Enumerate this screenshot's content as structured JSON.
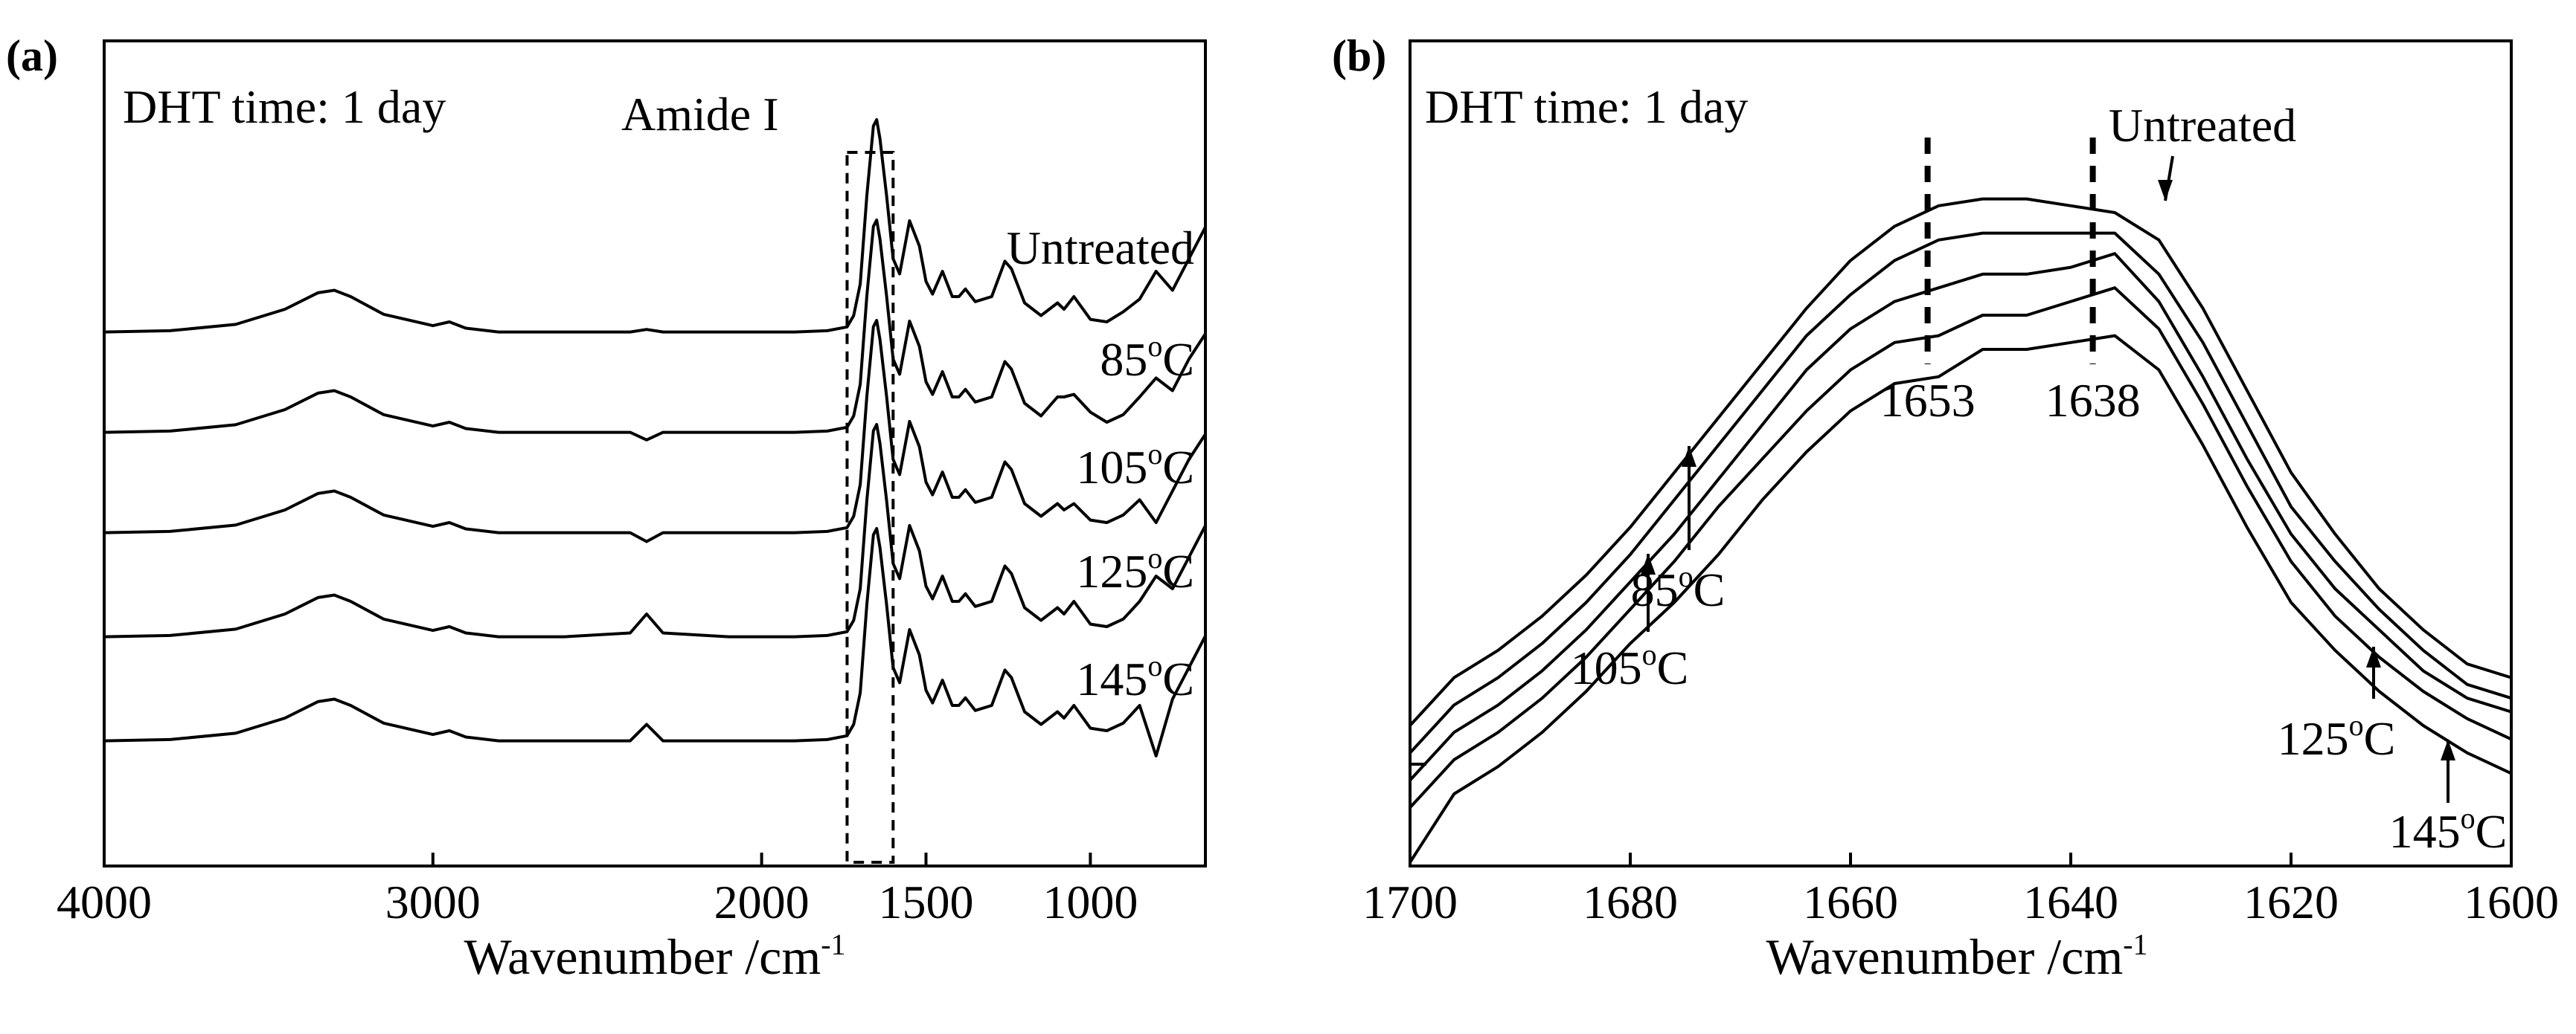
{
  "chart_data": [
    {
      "type": "line",
      "panel_label": "(a)",
      "xlabel": "Wavenumber /cm",
      "xlabel_sup": "-1",
      "x_reversed": true,
      "xlim": [
        4000,
        650
      ],
      "x_ticks": [
        {
          "value": 4000,
          "label": "4000"
        },
        {
          "value": 3000,
          "label": "3000"
        },
        {
          "value": 2000,
          "label": "2000"
        },
        {
          "value": 1500,
          "label": "1500"
        },
        {
          "value": 1000,
          "label": "1000"
        }
      ],
      "y_ticks_shown": false,
      "stack_offset": 0.72,
      "annotations": {
        "condition": "DHT time: 1 day",
        "region_label": "Amide I",
        "region_x": [
          1740,
          1600
        ]
      },
      "series": [
        {
          "name": "Untreated",
          "name_text": "Untreated",
          "name_sup": "",
          "name_suffix": "",
          "x": [
            4000,
            3800,
            3600,
            3450,
            3350,
            3300,
            3250,
            3150,
            3000,
            2950,
            2900,
            2800,
            2600,
            2400,
            2350,
            2300,
            2100,
            1900,
            1800,
            1740,
            1720,
            1700,
            1680,
            1660,
            1650,
            1640,
            1620,
            1600,
            1580,
            1550,
            1520,
            1500,
            1480,
            1450,
            1420,
            1400,
            1380,
            1350,
            1300,
            1260,
            1240,
            1200,
            1150,
            1100,
            1080,
            1050,
            1000,
            950,
            900,
            850,
            800,
            750,
            700,
            650
          ],
          "y": [
            0.02,
            0.03,
            0.08,
            0.2,
            0.33,
            0.35,
            0.3,
            0.16,
            0.07,
            0.1,
            0.05,
            0.02,
            0.02,
            0.02,
            0.04,
            0.02,
            0.02,
            0.02,
            0.03,
            0.06,
            0.15,
            0.4,
            1.1,
            1.65,
            1.7,
            1.55,
            1.1,
            0.6,
            0.48,
            0.9,
            0.7,
            0.42,
            0.32,
            0.5,
            0.3,
            0.3,
            0.36,
            0.26,
            0.3,
            0.58,
            0.52,
            0.25,
            0.15,
            0.25,
            0.2,
            0.3,
            0.12,
            0.1,
            0.18,
            0.28,
            0.5,
            0.35,
            0.6,
            0.85
          ]
        },
        {
          "name": "85°C",
          "name_text": "85",
          "name_sup": "o",
          "name_suffix": "C",
          "x": [
            4000,
            3800,
            3600,
            3450,
            3350,
            3300,
            3250,
            3150,
            3000,
            2950,
            2900,
            2800,
            2600,
            2400,
            2350,
            2300,
            2100,
            1900,
            1800,
            1740,
            1720,
            1700,
            1680,
            1660,
            1650,
            1640,
            1620,
            1600,
            1580,
            1550,
            1520,
            1500,
            1480,
            1450,
            1420,
            1400,
            1380,
            1350,
            1300,
            1260,
            1240,
            1200,
            1150,
            1100,
            1080,
            1050,
            1000,
            950,
            900,
            850,
            800,
            750,
            700,
            650
          ],
          "y": [
            0.02,
            0.03,
            0.08,
            0.2,
            0.33,
            0.35,
            0.3,
            0.16,
            0.07,
            0.1,
            0.05,
            0.02,
            0.02,
            0.02,
            -0.04,
            0.02,
            0.02,
            0.02,
            0.03,
            0.06,
            0.15,
            0.4,
            1.1,
            1.65,
            1.7,
            1.55,
            1.1,
            0.6,
            0.48,
            0.9,
            0.7,
            0.42,
            0.32,
            0.5,
            0.3,
            0.3,
            0.36,
            0.26,
            0.3,
            0.58,
            0.52,
            0.25,
            0.15,
            0.3,
            0.3,
            0.32,
            0.18,
            0.1,
            0.16,
            0.3,
            0.45,
            0.35,
            0.6,
            0.8
          ]
        },
        {
          "name": "105°C",
          "name_text": "105",
          "name_sup": "o",
          "name_suffix": "C",
          "x": [
            4000,
            3800,
            3600,
            3450,
            3350,
            3300,
            3250,
            3150,
            3000,
            2950,
            2900,
            2800,
            2600,
            2400,
            2350,
            2300,
            2100,
            1900,
            1800,
            1740,
            1720,
            1700,
            1680,
            1660,
            1650,
            1640,
            1620,
            1600,
            1580,
            1550,
            1520,
            1500,
            1480,
            1450,
            1420,
            1400,
            1380,
            1350,
            1300,
            1260,
            1240,
            1200,
            1150,
            1100,
            1080,
            1050,
            1000,
            950,
            900,
            850,
            800,
            750,
            700,
            650
          ],
          "y": [
            0.02,
            0.03,
            0.08,
            0.2,
            0.33,
            0.35,
            0.3,
            0.16,
            0.07,
            0.1,
            0.05,
            0.02,
            0.02,
            0.02,
            -0.05,
            0.02,
            0.02,
            0.02,
            0.03,
            0.06,
            0.15,
            0.4,
            1.1,
            1.65,
            1.7,
            1.55,
            1.1,
            0.6,
            0.48,
            0.9,
            0.7,
            0.42,
            0.32,
            0.5,
            0.3,
            0.3,
            0.36,
            0.26,
            0.3,
            0.58,
            0.52,
            0.25,
            0.15,
            0.25,
            0.2,
            0.25,
            0.12,
            0.1,
            0.16,
            0.28,
            0.1,
            0.35,
            0.6,
            0.8
          ]
        },
        {
          "name": "125°C",
          "name_text": "125",
          "name_sup": "o",
          "name_suffix": "C",
          "x": [
            4000,
            3800,
            3600,
            3450,
            3350,
            3300,
            3250,
            3150,
            3000,
            2950,
            2900,
            2800,
            2600,
            2400,
            2350,
            2300,
            2100,
            1900,
            1800,
            1740,
            1720,
            1700,
            1680,
            1660,
            1650,
            1640,
            1620,
            1600,
            1580,
            1550,
            1520,
            1500,
            1480,
            1450,
            1420,
            1400,
            1380,
            1350,
            1300,
            1260,
            1240,
            1200,
            1150,
            1100,
            1080,
            1050,
            1000,
            950,
            900,
            850,
            800,
            750,
            700,
            650
          ],
          "y": [
            0.02,
            0.03,
            0.08,
            0.2,
            0.33,
            0.35,
            0.3,
            0.16,
            0.07,
            0.1,
            0.05,
            0.02,
            0.02,
            0.05,
            0.2,
            0.05,
            0.02,
            0.02,
            0.03,
            0.06,
            0.15,
            0.4,
            1.1,
            1.65,
            1.7,
            1.55,
            1.1,
            0.6,
            0.48,
            0.9,
            0.7,
            0.42,
            0.32,
            0.5,
            0.3,
            0.3,
            0.36,
            0.26,
            0.3,
            0.58,
            0.52,
            0.25,
            0.15,
            0.25,
            0.2,
            0.3,
            0.12,
            0.1,
            0.16,
            0.3,
            0.5,
            0.4,
            0.65,
            0.9
          ]
        },
        {
          "name": "145°C",
          "name_text": "145",
          "name_sup": "o",
          "name_suffix": "C",
          "x": [
            4000,
            3800,
            3600,
            3450,
            3350,
            3300,
            3250,
            3150,
            3000,
            2950,
            2900,
            2800,
            2600,
            2400,
            2350,
            2300,
            2100,
            1900,
            1800,
            1740,
            1720,
            1700,
            1680,
            1660,
            1650,
            1640,
            1620,
            1600,
            1580,
            1550,
            1520,
            1500,
            1480,
            1450,
            1420,
            1400,
            1380,
            1350,
            1300,
            1260,
            1240,
            1200,
            1150,
            1100,
            1080,
            1050,
            1000,
            950,
            900,
            850,
            800,
            750,
            700,
            650
          ],
          "y": [
            0.02,
            0.03,
            0.08,
            0.2,
            0.33,
            0.35,
            0.3,
            0.16,
            0.07,
            0.1,
            0.05,
            0.02,
            0.02,
            0.02,
            0.15,
            0.02,
            0.02,
            0.02,
            0.03,
            0.06,
            0.15,
            0.4,
            1.1,
            1.65,
            1.7,
            1.55,
            1.1,
            0.6,
            0.48,
            0.9,
            0.7,
            0.42,
            0.32,
            0.5,
            0.3,
            0.3,
            0.36,
            0.26,
            0.3,
            0.58,
            0.52,
            0.25,
            0.15,
            0.25,
            0.2,
            0.3,
            0.12,
            0.1,
            0.16,
            0.3,
            -0.1,
            0.35,
            0.6,
            0.85
          ]
        }
      ]
    },
    {
      "type": "line",
      "panel_label": "(b)",
      "xlabel": "Wavenumber /cm",
      "xlabel_sup": "-1",
      "x_reversed": true,
      "xlim": [
        1700,
        1600
      ],
      "x_ticks": [
        {
          "value": 1700,
          "label": "1700"
        },
        {
          "value": 1680,
          "label": "1680"
        },
        {
          "value": 1660,
          "label": "1660"
        },
        {
          "value": 1640,
          "label": "1640"
        },
        {
          "value": 1620,
          "label": "1620"
        },
        {
          "value": 1600,
          "label": "1600"
        }
      ],
      "y_ticks_shown": false,
      "annotations": {
        "condition": "DHT time: 1 day",
        "peak_markers": [
          {
            "value": 1653,
            "label": "1653"
          },
          {
            "value": 1638,
            "label": "1638"
          }
        ]
      },
      "series": [
        {
          "name": "Untreated",
          "name_text": "Untreated",
          "name_sup": "",
          "name_suffix": "",
          "x": [
            1700,
            1696,
            1692,
            1688,
            1684,
            1680,
            1676,
            1672,
            1668,
            1664,
            1660,
            1656,
            1652,
            1648,
            1644,
            1640,
            1636,
            1632,
            1628,
            1624,
            1620,
            1616,
            1612,
            1608,
            1604,
            1600
          ],
          "y": [
            0.2,
            0.27,
            0.31,
            0.36,
            0.42,
            0.49,
            0.57,
            0.65,
            0.73,
            0.81,
            0.88,
            0.93,
            0.96,
            0.97,
            0.97,
            0.96,
            0.95,
            0.91,
            0.81,
            0.69,
            0.57,
            0.48,
            0.4,
            0.34,
            0.29,
            0.27
          ]
        },
        {
          "name": "85°C",
          "name_text": "85",
          "name_sup": "o",
          "name_suffix": "C",
          "x": [
            1700,
            1696,
            1692,
            1688,
            1684,
            1680,
            1676,
            1672,
            1668,
            1664,
            1660,
            1656,
            1652,
            1648,
            1644,
            1640,
            1636,
            1632,
            1628,
            1624,
            1620,
            1616,
            1612,
            1608,
            1604,
            1600
          ],
          "y": [
            0.16,
            0.23,
            0.27,
            0.32,
            0.38,
            0.45,
            0.53,
            0.61,
            0.69,
            0.77,
            0.83,
            0.88,
            0.91,
            0.92,
            0.92,
            0.92,
            0.92,
            0.86,
            0.76,
            0.64,
            0.52,
            0.44,
            0.37,
            0.31,
            0.26,
            0.24
          ]
        },
        {
          "name": "105°C",
          "name_text": "105",
          "name_sup": "o",
          "name_suffix": "C",
          "x": [
            1700,
            1696,
            1692,
            1688,
            1684,
            1680,
            1676,
            1672,
            1668,
            1664,
            1660,
            1656,
            1652,
            1648,
            1644,
            1640,
            1636,
            1632,
            1628,
            1624,
            1620,
            1616,
            1612,
            1608,
            1604,
            1600
          ],
          "y": [
            0.12,
            0.19,
            0.23,
            0.28,
            0.34,
            0.41,
            0.48,
            0.56,
            0.64,
            0.72,
            0.78,
            0.82,
            0.84,
            0.86,
            0.86,
            0.87,
            0.89,
            0.82,
            0.71,
            0.59,
            0.48,
            0.4,
            0.34,
            0.28,
            0.24,
            0.22
          ]
        },
        {
          "name": "125°C",
          "name_text": "125",
          "name_sup": "o",
          "name_suffix": "C",
          "x": [
            1700,
            1696,
            1692,
            1688,
            1684,
            1680,
            1676,
            1672,
            1668,
            1664,
            1660,
            1656,
            1652,
            1648,
            1644,
            1640,
            1636,
            1632,
            1628,
            1624,
            1620,
            1616,
            1612,
            1608,
            1604,
            1600
          ],
          "y": [
            0.08,
            0.15,
            0.19,
            0.24,
            0.3,
            0.37,
            0.44,
            0.52,
            0.59,
            0.66,
            0.72,
            0.76,
            0.77,
            0.8,
            0.8,
            0.82,
            0.84,
            0.78,
            0.67,
            0.55,
            0.44,
            0.36,
            0.3,
            0.25,
            0.21,
            0.18
          ]
        },
        {
          "name": "145°C",
          "name_text": "145",
          "name_sup": "o",
          "name_suffix": "C",
          "x": [
            1700,
            1696,
            1692,
            1688,
            1684,
            1680,
            1676,
            1672,
            1668,
            1664,
            1660,
            1656,
            1652,
            1648,
            1644,
            1640,
            1636,
            1632,
            1628,
            1624,
            1620,
            1616,
            1612,
            1608,
            1604,
            1600
          ],
          "y": [
            0.0,
            0.1,
            0.14,
            0.19,
            0.25,
            0.32,
            0.38,
            0.45,
            0.53,
            0.6,
            0.66,
            0.7,
            0.71,
            0.75,
            0.75,
            0.76,
            0.77,
            0.72,
            0.61,
            0.49,
            0.38,
            0.31,
            0.25,
            0.2,
            0.16,
            0.13
          ]
        }
      ]
    }
  ]
}
